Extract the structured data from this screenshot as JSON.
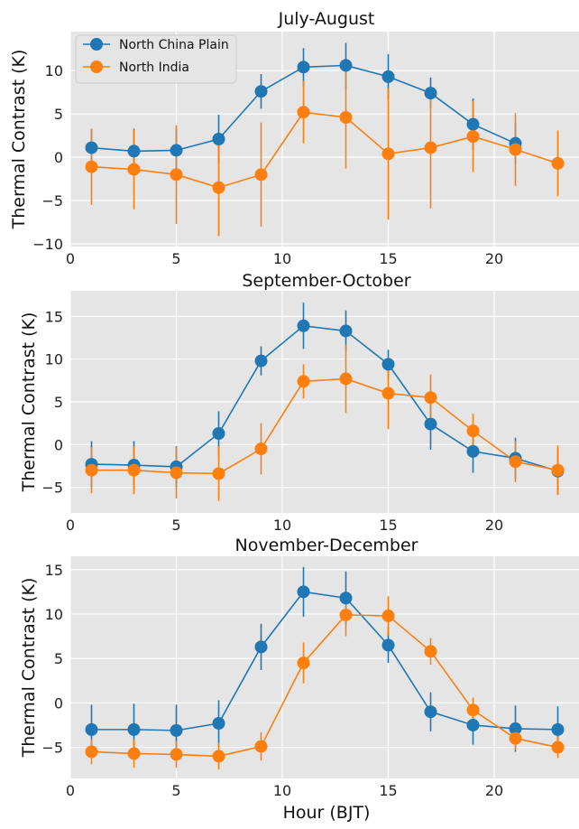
{
  "figure": {
    "xlabel": "Hour (BJT)",
    "ylabel": "Thermal Contrast (K)",
    "legend": [
      "North China Plain",
      "North India"
    ]
  },
  "colors": {
    "series1": "#1f77b4",
    "series2": "#ff7f0e",
    "panel_bg": "#e5e5e5",
    "grid": "#ffffff"
  },
  "chart_data": [
    {
      "type": "line",
      "title": "July-August",
      "xlabel": "",
      "ylabel": "Thermal Contrast (K)",
      "xlim": [
        0,
        24
      ],
      "ylim": [
        -10.3,
        14.5
      ],
      "xticks": [
        0,
        5,
        10,
        15,
        20
      ],
      "yticks": [
        -10,
        -5,
        0,
        5,
        10
      ],
      "grid": true,
      "legend_position": "top-left",
      "x": [
        1,
        3,
        5,
        7,
        9,
        11,
        13,
        15,
        17,
        19,
        21,
        23
      ],
      "series": [
        {
          "name": "North China Plain",
          "values": [
            1.1,
            0.7,
            0.8,
            2.1,
            7.6,
            10.4,
            10.6,
            9.3,
            7.4,
            3.8,
            1.6,
            null
          ],
          "error": [
            2.2,
            2.6,
            2.6,
            2.8,
            2.0,
            2.2,
            2.6,
            2.6,
            1.8,
            3.0,
            2.4,
            null
          ]
        },
        {
          "name": "North India",
          "values": [
            -1.1,
            -1.4,
            -2.0,
            -3.5,
            -2.0,
            5.2,
            4.6,
            0.4,
            1.1,
            2.4,
            0.9,
            -0.7
          ],
          "error": [
            4.4,
            4.6,
            5.7,
            5.6,
            6.0,
            3.6,
            5.9,
            7.6,
            7.0,
            4.1,
            4.2,
            3.8
          ]
        }
      ]
    },
    {
      "type": "line",
      "title": "September-October",
      "xlabel": "",
      "ylabel": "Thermal Contrast (K)",
      "xlim": [
        0,
        24
      ],
      "ylim": [
        -8,
        18
      ],
      "xticks": [
        0,
        5,
        10,
        15,
        20
      ],
      "yticks": [
        -5,
        0,
        5,
        10,
        15
      ],
      "grid": true,
      "x": [
        1,
        3,
        5,
        7,
        9,
        11,
        13,
        15,
        17,
        19,
        21,
        23
      ],
      "series": [
        {
          "name": "North China Plain",
          "values": [
            -2.3,
            -2.4,
            -2.6,
            1.3,
            9.8,
            13.9,
            13.3,
            9.4,
            2.4,
            -0.8,
            -1.6,
            -3.1
          ],
          "error": [
            2.7,
            2.8,
            2.4,
            2.6,
            1.7,
            2.7,
            2.4,
            1.7,
            3.0,
            2.5,
            2.4,
            2.7
          ]
        },
        {
          "name": "North India",
          "values": [
            -3.0,
            -3.0,
            -3.3,
            -3.4,
            -0.5,
            7.4,
            7.7,
            6.0,
            5.5,
            1.6,
            -2.0,
            -3.0
          ],
          "error": [
            2.7,
            2.8,
            3.0,
            3.2,
            3.0,
            2.0,
            4.0,
            4.2,
            2.7,
            2.0,
            2.4,
            2.9
          ]
        }
      ]
    },
    {
      "type": "line",
      "title": "November-December",
      "xlabel": "Hour (BJT)",
      "ylabel": "Thermal Contrast (K)",
      "xlim": [
        0,
        24
      ],
      "ylim": [
        -8.5,
        16.5
      ],
      "xticks": [
        0,
        5,
        10,
        15,
        20
      ],
      "yticks": [
        -5,
        0,
        5,
        10,
        15
      ],
      "grid": true,
      "x": [
        1,
        3,
        5,
        7,
        9,
        11,
        13,
        15,
        17,
        19,
        21,
        23
      ],
      "series": [
        {
          "name": "North China Plain",
          "values": [
            -3.0,
            -3.0,
            -3.1,
            -2.3,
            6.3,
            12.5,
            11.8,
            6.5,
            -1.0,
            -2.5,
            -2.9,
            -3.0
          ],
          "error": [
            2.8,
            2.9,
            2.9,
            2.6,
            2.6,
            2.8,
            3.0,
            2.0,
            2.2,
            2.2,
            2.6,
            2.6
          ]
        },
        {
          "name": "North India",
          "values": [
            -5.5,
            -5.7,
            -5.8,
            -6.0,
            -4.9,
            4.5,
            9.9,
            9.8,
            5.8,
            -0.8,
            -4.0,
            -5.0
          ],
          "error": [
            1.4,
            1.6,
            1.5,
            1.5,
            1.6,
            2.3,
            2.4,
            2.2,
            1.5,
            1.4,
            1.3,
            1.2
          ]
        }
      ]
    }
  ]
}
